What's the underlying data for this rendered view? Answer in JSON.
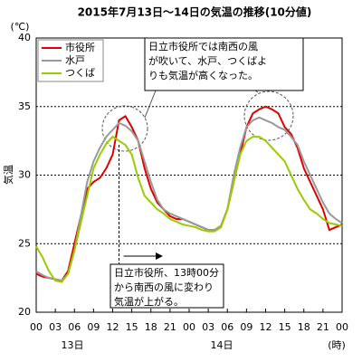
{
  "chart_data": {
    "type": "line",
    "title": "2015年7月13日～14日の気温の推移(10分値)",
    "y_unit": "(℃)",
    "ylabel": "気温",
    "x_unit": "(時)",
    "day_labels": [
      "13日",
      "14日"
    ],
    "x": [
      0,
      1,
      2,
      3,
      4,
      5,
      6,
      7,
      8,
      9,
      10,
      11,
      12,
      13,
      14,
      15,
      16,
      17,
      18,
      19,
      20,
      21,
      22,
      23,
      24,
      25,
      26,
      27,
      28,
      29,
      30,
      31,
      32,
      33,
      34,
      35,
      36,
      37,
      38,
      39,
      40,
      41,
      42,
      43,
      44,
      45,
      46,
      47,
      48
    ],
    "xlim": [
      0,
      48
    ],
    "xticks": [
      {
        "value": 0,
        "label": "00"
      },
      {
        "value": 3,
        "label": "03"
      },
      {
        "value": 6,
        "label": "06"
      },
      {
        "value": 9,
        "label": "09"
      },
      {
        "value": 12,
        "label": "12"
      },
      {
        "value": 15,
        "label": "15"
      },
      {
        "value": 18,
        "label": "18"
      },
      {
        "value": 21,
        "label": "21"
      },
      {
        "value": 24,
        "label": "00"
      },
      {
        "value": 27,
        "label": "03"
      },
      {
        "value": 30,
        "label": "06"
      },
      {
        "value": 33,
        "label": "09"
      },
      {
        "value": 36,
        "label": "12"
      },
      {
        "value": 39,
        "label": "15"
      },
      {
        "value": 42,
        "label": "18"
      },
      {
        "value": 45,
        "label": "21"
      },
      {
        "value": 48,
        "label": "00"
      }
    ],
    "ylim": [
      20,
      40
    ],
    "yticks": [
      20,
      25,
      30,
      35,
      40
    ],
    "grid": true,
    "legend": "top-left",
    "series": [
      {
        "name": "市役所",
        "color": "#e00000",
        "values": [
          22.8,
          22.6,
          22.5,
          22.4,
          22.3,
          23.0,
          25.0,
          27.0,
          29.0,
          29.5,
          29.8,
          30.5,
          31.5,
          34.0,
          34.3,
          33.5,
          32.5,
          30.5,
          29.0,
          28.0,
          27.5,
          27.0,
          26.8,
          26.8,
          26.6,
          26.4,
          26.2,
          26.0,
          26.0,
          26.3,
          27.5,
          29.5,
          31.5,
          33.5,
          34.5,
          34.8,
          35.0,
          34.8,
          34.5,
          33.5,
          33.0,
          32.0,
          30.5,
          29.5,
          28.5,
          27.5,
          26.0,
          26.2,
          26.4
        ]
      },
      {
        "name": "水戸",
        "color": "#999999",
        "values": [
          23.0,
          22.7,
          22.5,
          22.4,
          22.3,
          22.8,
          24.5,
          27.0,
          29.5,
          31.0,
          32.0,
          32.8,
          33.3,
          33.8,
          33.6,
          33.2,
          32.5,
          31.0,
          29.5,
          28.2,
          27.5,
          27.2,
          27.0,
          26.8,
          26.6,
          26.4,
          26.2,
          26.0,
          26.0,
          26.3,
          27.5,
          30.0,
          32.0,
          33.5,
          34.0,
          34.2,
          34.0,
          33.8,
          33.5,
          33.3,
          32.8,
          32.2,
          31.0,
          30.0,
          29.0,
          28.0,
          27.2,
          26.8,
          26.5
        ]
      },
      {
        "name": "つくば",
        "color": "#99cc00",
        "values": [
          24.8,
          24.0,
          23.0,
          22.3,
          22.2,
          22.8,
          24.5,
          26.5,
          28.5,
          30.5,
          31.5,
          32.3,
          32.8,
          32.5,
          32.2,
          31.5,
          29.8,
          28.5,
          28.0,
          27.5,
          27.2,
          26.8,
          26.6,
          26.4,
          26.3,
          26.2,
          26.0,
          25.9,
          25.9,
          26.2,
          27.5,
          29.5,
          31.5,
          32.5,
          32.8,
          32.8,
          32.5,
          32.0,
          31.5,
          31.0,
          30.0,
          29.0,
          28.2,
          27.5,
          27.2,
          26.8,
          26.5,
          26.4,
          26.3
        ]
      }
    ],
    "annotations": [
      {
        "lines": [
          "日立市役所では南西の風",
          "が吹いて、水戸、つくばよ",
          "りも気温が高くなった。"
        ]
      },
      {
        "lines": [
          "日立市役所、13時00分",
          "から南西の風に変わり",
          "気温が上がる。"
        ]
      }
    ]
  }
}
